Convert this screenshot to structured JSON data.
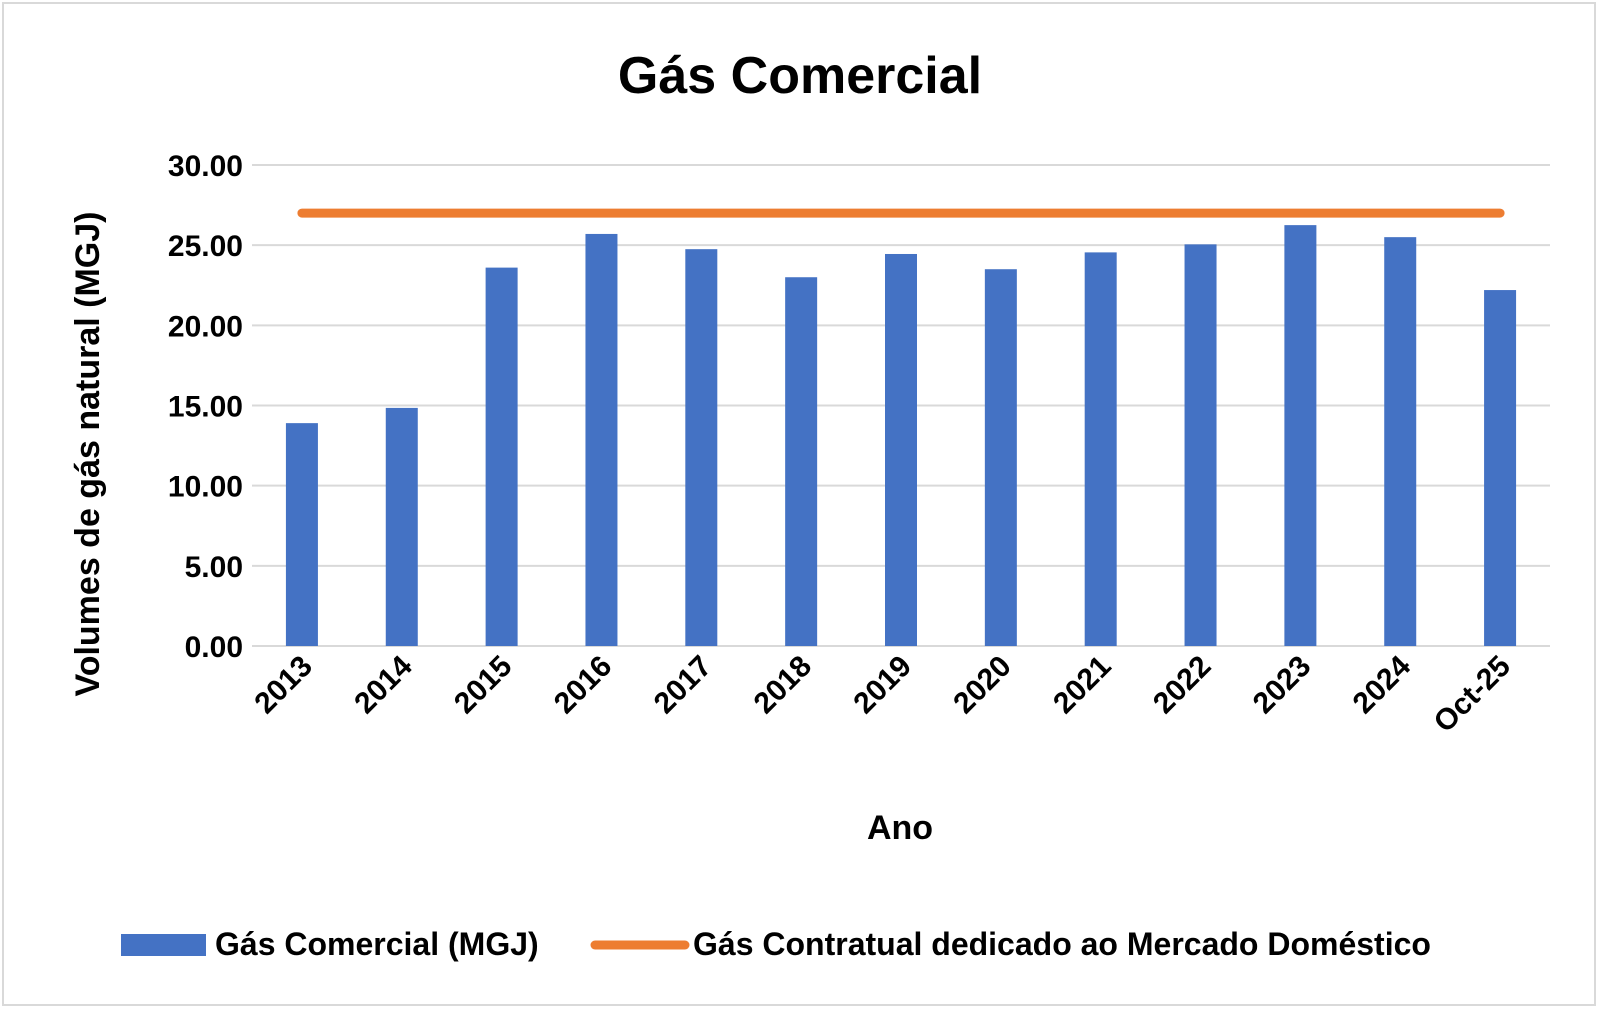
{
  "chart_data": {
    "type": "bar",
    "title": "Gás Comercial",
    "xlabel": "Ano",
    "ylabel": "Volumes de gás natural (MGJ)",
    "categories": [
      "2013",
      "2014",
      "2015",
      "2016",
      "2017",
      "2018",
      "2019",
      "2020",
      "2021",
      "2022",
      "2023",
      "2024",
      "Oct-25"
    ],
    "series": [
      {
        "name": "Gás Comercial (MGJ)",
        "type": "bar",
        "color": "#4472C4",
        "values": [
          13.9,
          14.85,
          23.6,
          25.7,
          24.75,
          23.0,
          24.45,
          23.5,
          24.55,
          25.05,
          26.25,
          25.5,
          22.2
        ]
      },
      {
        "name": "Gás Contratual dedicado ao Mercado Doméstico",
        "type": "line",
        "color": "#ED7D31",
        "values": [
          27,
          27,
          27,
          27,
          27,
          27,
          27,
          27,
          27,
          27,
          27,
          27,
          27
        ]
      }
    ],
    "ylim": [
      0,
      30
    ],
    "yticks": [
      "0.00",
      "5.00",
      "10.00",
      "15.00",
      "20.00",
      "25.00",
      "30.00"
    ],
    "grid": true,
    "legend_position": "bottom"
  }
}
